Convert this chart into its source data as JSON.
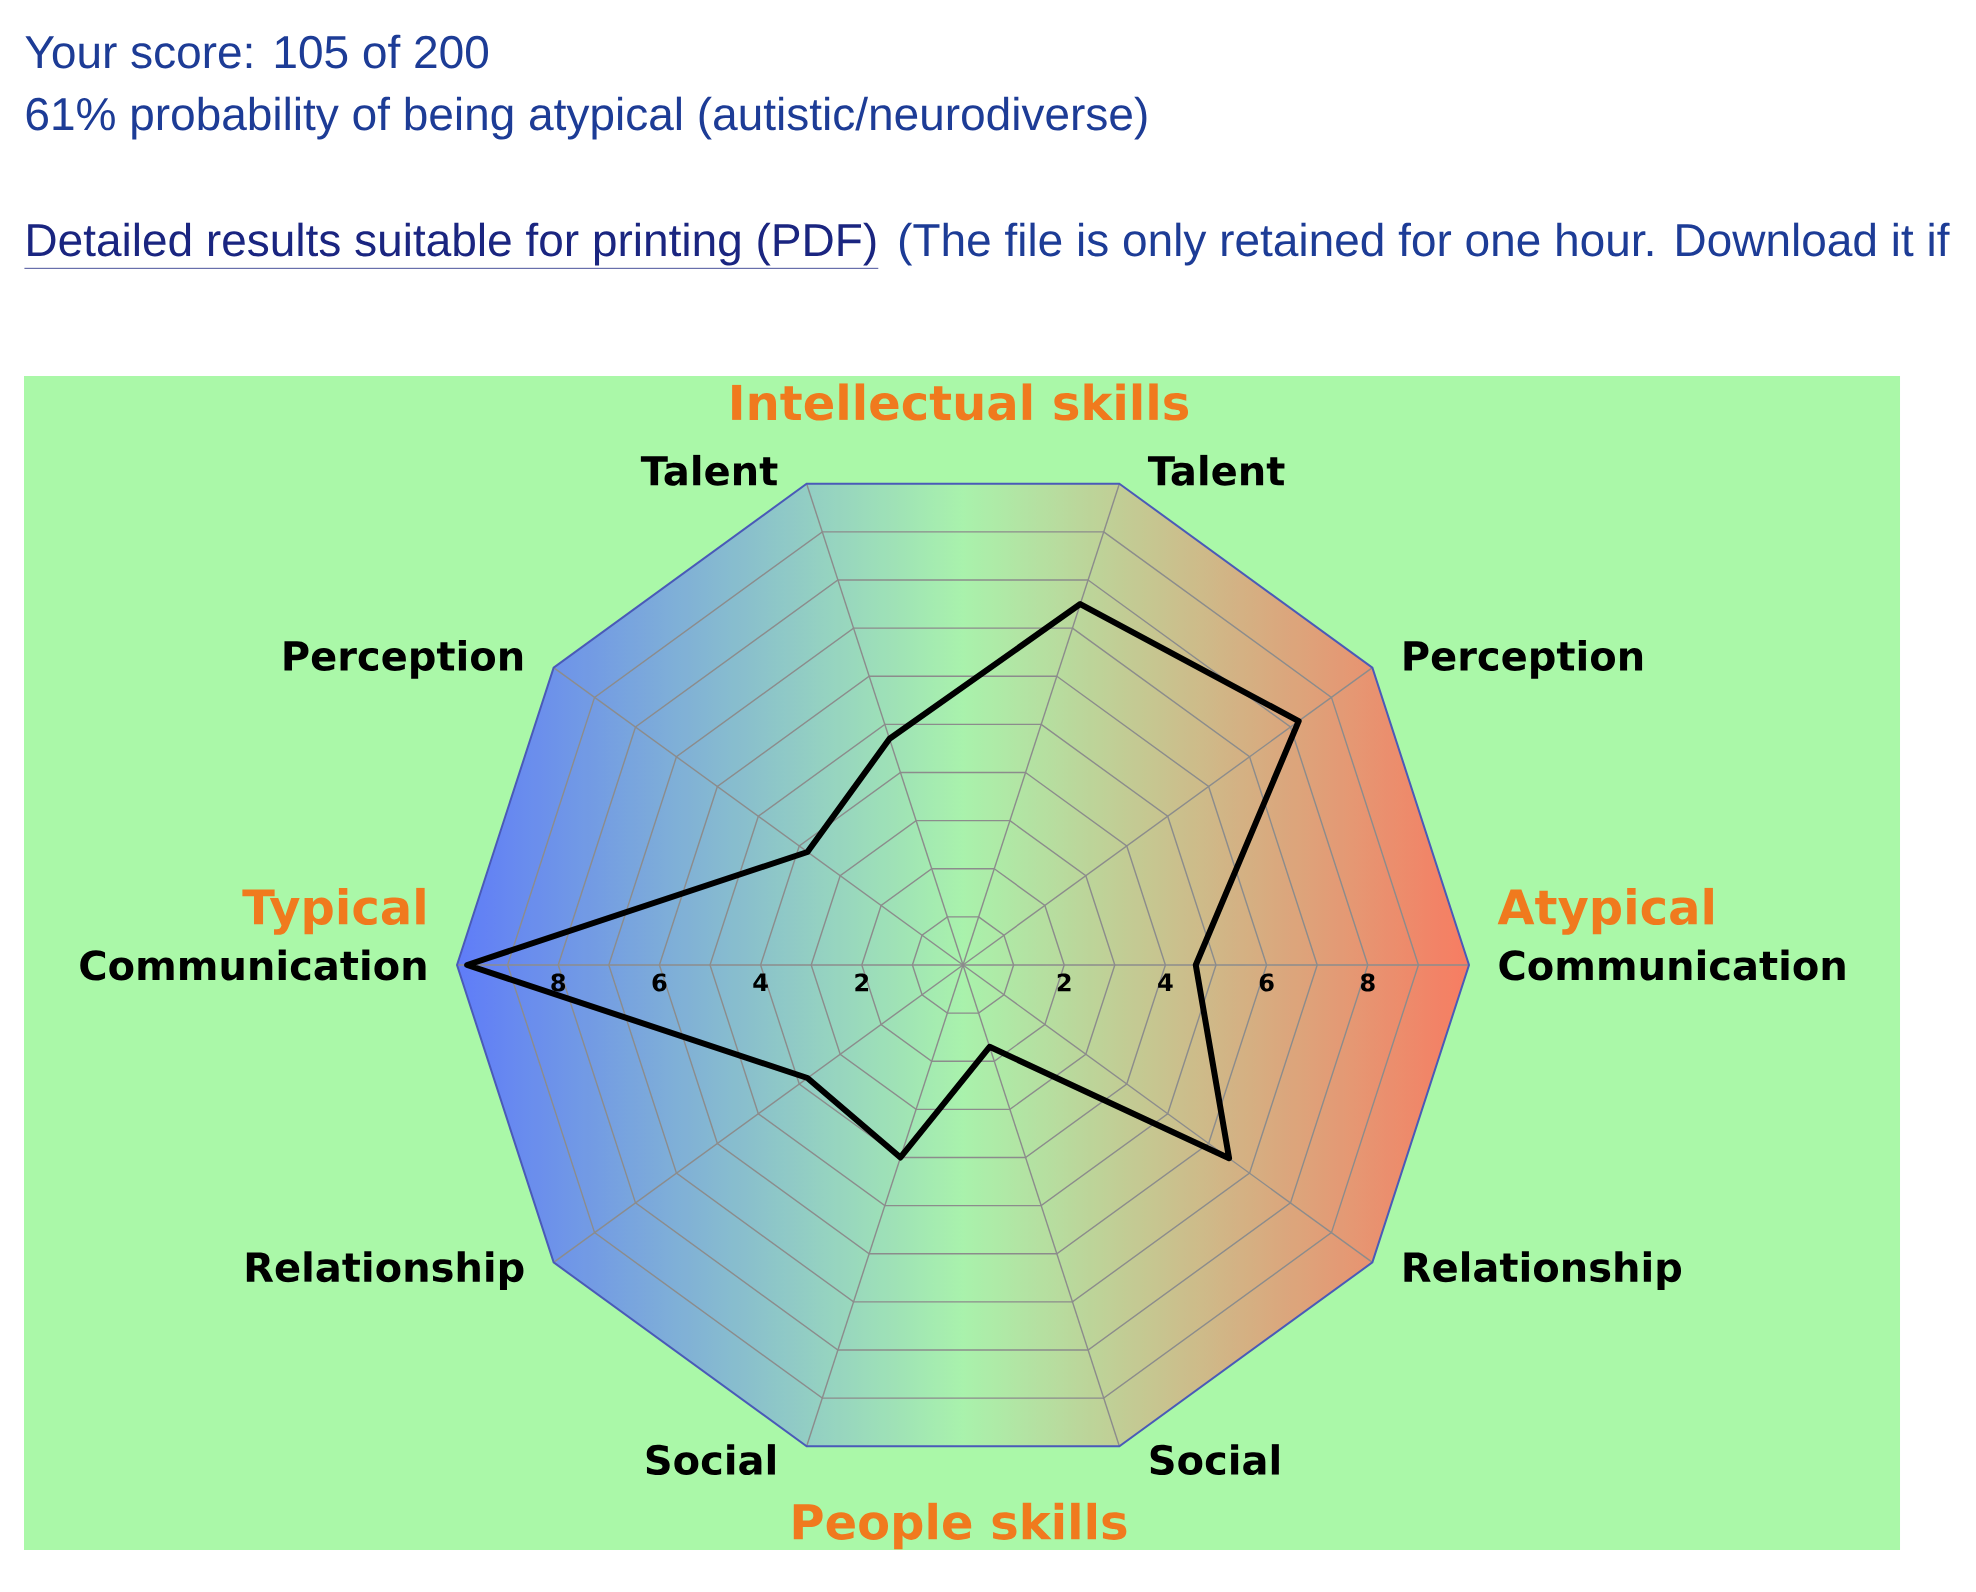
{
  "chart_data": {
    "type": "radar",
    "title": "Your score: 105 of 200",
    "subtitle": "61% probability of being atypical (autistic/neurodiverse)",
    "annotations": [
      "Detailed results suitable for printing (PDF)",
      "(The file is only retained for one hour. Download it if",
      "Intellectual skills",
      "People skills",
      "Typical",
      "Atypical"
    ],
    "categories": [
      "Talent",
      "Perception",
      "Communication",
      "Relationship",
      "Social",
      "Social",
      "Relationship",
      "Communication",
      "Perception",
      "Talent"
    ],
    "series": [
      {
        "color": "#000000",
        "values": [
          7.5,
          8.2,
          4.6,
          6.5,
          1.7,
          4.0,
          3.8,
          9.8,
          3.8,
          4.7
        ]
      }
    ],
    "ylim": [
      0,
      10
    ],
    "yticks": [
      2,
      4,
      6,
      8,
      2,
      4,
      6,
      8
    ],
    "grid": true
  }
}
